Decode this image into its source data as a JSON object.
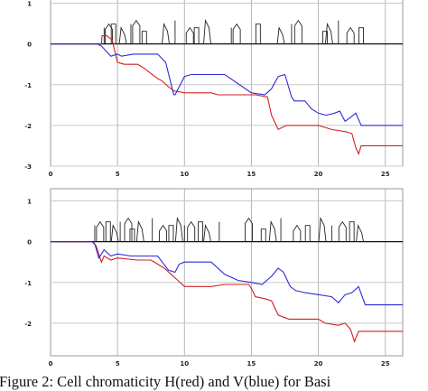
{
  "chart_data": [
    {
      "type": "line",
      "xlim": [
        0,
        26.3
      ],
      "ylim": [
        -3,
        1.3
      ],
      "xticks": [
        0,
        5,
        10,
        15,
        20,
        25
      ],
      "yticks": [
        1,
        0,
        -1,
        -2,
        -3
      ],
      "grid": true,
      "series": [
        {
          "color": "#d02020",
          "x": [
            0,
            3.8,
            3.85,
            4.2,
            4.4,
            4.6,
            5.0,
            5.5,
            6.5,
            7.0,
            8.0,
            8.3,
            8.8,
            9.2,
            10.0,
            11.0,
            12.0,
            12.5,
            14.0,
            15.0,
            15.3,
            16.2,
            16.5,
            17.0,
            17.6,
            19.5,
            20.0,
            20.5,
            21.0,
            22.0,
            22.5,
            22.8,
            23.0,
            23.2,
            24.0,
            25.0,
            26.3
          ],
          "y": [
            0,
            0,
            0.2,
            0.2,
            0.15,
            0.1,
            -0.45,
            -0.5,
            -0.5,
            -0.6,
            -0.85,
            -0.9,
            -1.05,
            -1.15,
            -1.2,
            -1.2,
            -1.2,
            -1.25,
            -1.25,
            -1.25,
            -1.25,
            -1.3,
            -1.75,
            -2.1,
            -2.0,
            -2.0,
            -2.0,
            -2.05,
            -2.1,
            -2.15,
            -2.2,
            -2.55,
            -2.7,
            -2.5,
            -2.5,
            -2.5,
            -2.5
          ]
        },
        {
          "color": "#2b2bd8",
          "x": [
            0,
            3.5,
            3.8,
            4.5,
            5.0,
            5.3,
            6.2,
            7.2,
            8.0,
            8.6,
            9.2,
            9.3,
            10.0,
            10.5,
            11.5,
            12.5,
            13.0,
            15.0,
            16.0,
            16.5,
            17.0,
            17.5,
            18.0,
            18.2,
            19.0,
            19.5,
            20.0,
            20.6,
            21.2,
            21.6,
            22.0,
            22.4,
            22.8,
            23.2,
            24.0,
            25.0,
            26.3
          ],
          "y": [
            0,
            0,
            -0.05,
            -0.3,
            -0.25,
            -0.3,
            -0.25,
            -0.25,
            -0.25,
            -0.45,
            -1.25,
            -1.25,
            -0.8,
            -0.75,
            -0.75,
            -0.75,
            -0.75,
            -1.2,
            -1.25,
            -1.1,
            -0.8,
            -0.75,
            -1.3,
            -1.4,
            -1.4,
            -1.6,
            -1.7,
            -1.75,
            -1.7,
            -1.65,
            -1.9,
            -1.8,
            -1.7,
            -2.0,
            -2.0,
            -2.0,
            -2.0
          ]
        }
      ]
    },
    {
      "type": "line",
      "xlim": [
        0,
        26.3
      ],
      "ylim": [
        -2.8,
        1.3
      ],
      "xticks": [
        0,
        5,
        10,
        15,
        20,
        25
      ],
      "yticks": [
        1,
        0,
        -1,
        -2
      ],
      "grid": true,
      "series": [
        {
          "color": "#d02020",
          "x": [
            0,
            3.1,
            3.4,
            3.8,
            4.0,
            4.5,
            5.0,
            6.5,
            7.5,
            8.0,
            8.5,
            9.0,
            9.5,
            10.0,
            11.0,
            12.0,
            13.0,
            14.0,
            14.8,
            15.0,
            15.3,
            16.0,
            16.5,
            17.0,
            17.8,
            20.0,
            20.5,
            21.5,
            22.0,
            22.4,
            22.7,
            23.0,
            24.0,
            26.3
          ],
          "y": [
            0,
            0,
            -0.1,
            -0.5,
            -0.35,
            -0.45,
            -0.4,
            -0.45,
            -0.45,
            -0.55,
            -0.65,
            -0.8,
            -0.95,
            -1.1,
            -1.1,
            -1.1,
            -1.05,
            -1.05,
            -1.05,
            -1.15,
            -1.35,
            -1.4,
            -1.45,
            -1.8,
            -1.9,
            -1.9,
            -2.0,
            -2.05,
            -2.0,
            -2.15,
            -2.45,
            -2.2,
            -2.2,
            -2.2
          ]
        },
        {
          "color": "#2b2bd8",
          "x": [
            0,
            3.1,
            3.3,
            3.6,
            4.0,
            4.5,
            5.0,
            6.0,
            7.0,
            8.0,
            8.8,
            9.3,
            9.6,
            10.0,
            10.5,
            12.0,
            13.0,
            14.0,
            15.0,
            15.8,
            16.5,
            17.0,
            17.4,
            17.9,
            18.3,
            19.0,
            20.0,
            21.0,
            21.5,
            22.0,
            22.5,
            23.0,
            23.5,
            24.0,
            26.3
          ],
          "y": [
            0,
            0,
            -0.05,
            -0.4,
            -0.2,
            -0.35,
            -0.3,
            -0.35,
            -0.35,
            -0.35,
            -0.7,
            -0.75,
            -0.55,
            -0.5,
            -0.5,
            -0.5,
            -0.8,
            -0.95,
            -1.0,
            -1.05,
            -0.85,
            -0.65,
            -0.75,
            -1.1,
            -1.2,
            -1.25,
            -1.3,
            -1.35,
            -1.5,
            -1.3,
            -1.25,
            -1.1,
            -1.55,
            -1.55,
            -1.55
          ]
        }
      ]
    }
  ],
  "caption": "Figure 2: Cell chromaticity H(red) and V(blue) for Basi"
}
